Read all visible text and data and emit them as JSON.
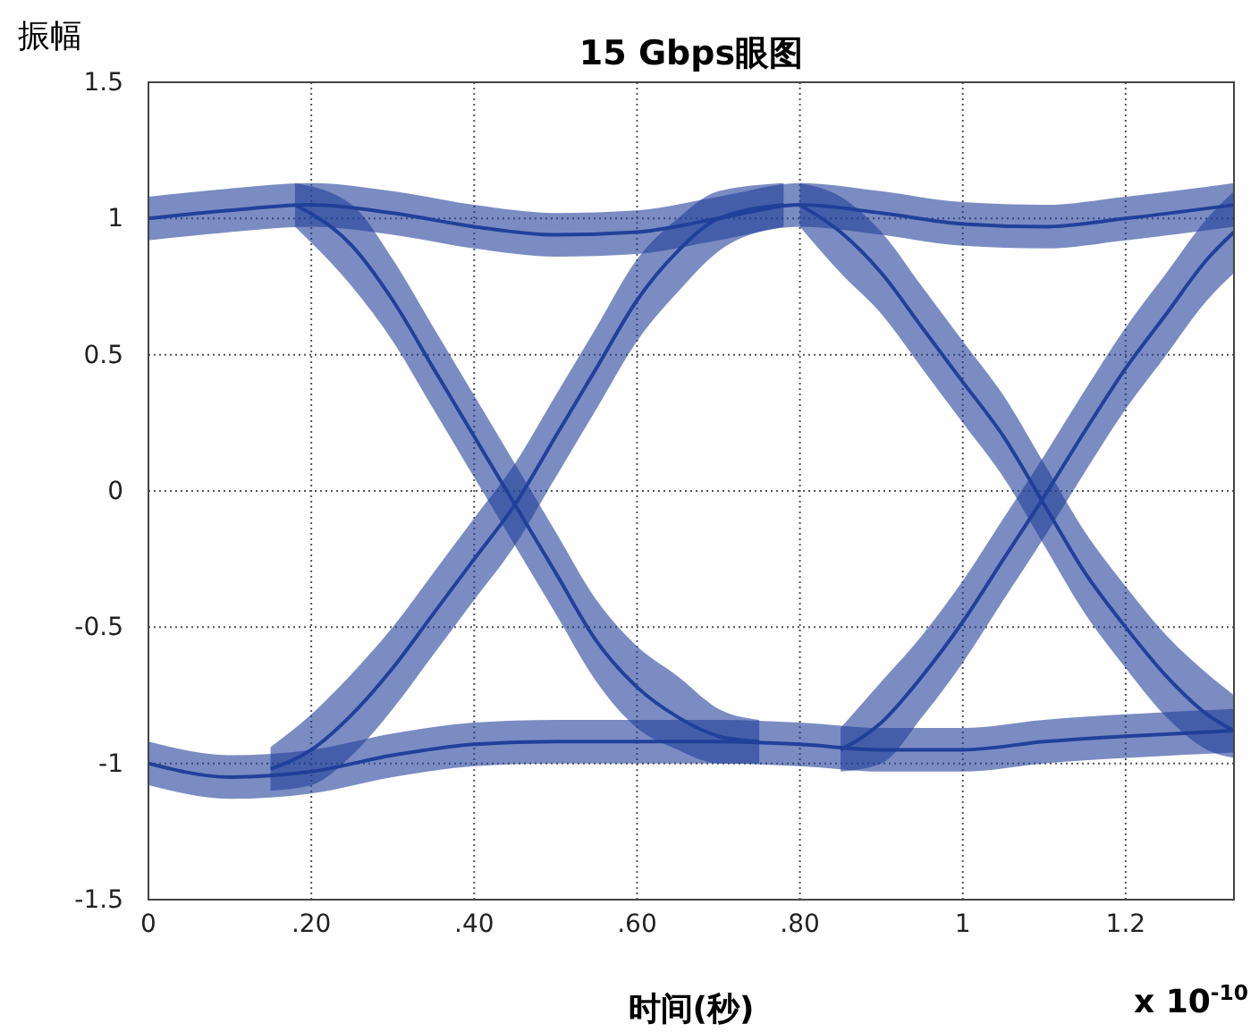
{
  "chart_data": {
    "type": "line",
    "title": "15 Gbps眼图",
    "xlabel": "时间(秒)",
    "ylabel": "振幅",
    "annotations": [
      "x 10$^{-10}$"
    ],
    "xlim": [
      0,
      1.333
    ],
    "ylim": [
      -1.5,
      1.5
    ],
    "xticks": [
      {
        "value": 0,
        "label": "0"
      },
      {
        "value": 0.2,
        "label": ".20"
      },
      {
        "value": 0.4,
        "label": ".40"
      },
      {
        "value": 0.6,
        "label": ".60"
      },
      {
        "value": 0.8,
        "label": ".80"
      },
      1,
      1.2
    ],
    "yticks": [
      -1.5,
      -1,
      -0.5,
      0,
      0.5,
      1,
      1.5
    ],
    "grid": true,
    "series": [
      {
        "color": "#21409a",
        "x": [
          0,
          0.1,
          0.2,
          0.3,
          0.4,
          0.5,
          0.6,
          0.7,
          0.8,
          0.9,
          1.0,
          1.1,
          1.2,
          1.333
        ],
        "values": [
          1.0,
          1.03,
          1.05,
          1.02,
          0.97,
          0.94,
          0.95,
          1.0,
          1.05,
          1.02,
          0.98,
          0.97,
          1.0,
          1.05
        ],
        "lower": [
          0.92,
          0.95,
          0.97,
          0.94,
          0.89,
          0.86,
          0.87,
          0.92,
          0.97,
          0.94,
          0.9,
          0.89,
          0.92,
          0.97
        ],
        "upper": [
          1.08,
          1.11,
          1.13,
          1.1,
          1.05,
          1.02,
          1.03,
          1.08,
          1.13,
          1.1,
          1.06,
          1.05,
          1.08,
          1.13
        ]
      },
      {
        "color": "#21409a",
        "x": [
          0,
          0.1,
          0.2,
          0.3,
          0.4,
          0.5,
          0.6,
          0.7,
          0.8,
          0.9,
          1.0,
          1.1,
          1.2,
          1.333
        ],
        "values": [
          -1.0,
          -1.05,
          -1.03,
          -0.97,
          -0.93,
          -0.92,
          -0.92,
          -0.92,
          -0.93,
          -0.95,
          -0.95,
          -0.92,
          -0.9,
          -0.88
        ],
        "lower": [
          -1.08,
          -1.13,
          -1.11,
          -1.05,
          -1.01,
          -1.0,
          -1.0,
          -1.0,
          -1.01,
          -1.03,
          -1.03,
          -1.0,
          -0.98,
          -0.96
        ],
        "upper": [
          -0.92,
          -0.97,
          -0.95,
          -0.89,
          -0.85,
          -0.84,
          -0.84,
          -0.84,
          -0.85,
          -0.87,
          -0.87,
          -0.84,
          -0.82,
          -0.8
        ]
      },
      {
        "color": "#21409a",
        "x": [
          0.18,
          0.25,
          0.3,
          0.35,
          0.4,
          0.45,
          0.5,
          0.55,
          0.6,
          0.65,
          0.7,
          0.75
        ],
        "values": [
          1.05,
          0.9,
          0.7,
          0.45,
          0.2,
          -0.05,
          -0.3,
          -0.55,
          -0.72,
          -0.83,
          -0.9,
          -0.92
        ],
        "lower": [
          0.97,
          0.75,
          0.55,
          0.3,
          0.05,
          -0.2,
          -0.45,
          -0.7,
          -0.87,
          -0.95,
          -1.0,
          -1.0
        ],
        "upper": [
          1.13,
          1.05,
          0.85,
          0.6,
          0.35,
          0.1,
          -0.15,
          -0.4,
          -0.57,
          -0.68,
          -0.8,
          -0.84
        ]
      },
      {
        "color": "#21409a",
        "x": [
          0.15,
          0.2,
          0.25,
          0.3,
          0.35,
          0.4,
          0.45,
          0.5,
          0.55,
          0.6,
          0.65,
          0.7,
          0.78
        ],
        "values": [
          -1.02,
          -0.95,
          -0.82,
          -0.65,
          -0.45,
          -0.25,
          -0.05,
          0.2,
          0.45,
          0.7,
          0.88,
          1.0,
          1.05
        ],
        "lower": [
          -1.1,
          -1.08,
          -0.97,
          -0.8,
          -0.6,
          -0.4,
          -0.2,
          0.05,
          0.3,
          0.55,
          0.73,
          0.88,
          0.97
        ],
        "upper": [
          -0.94,
          -0.82,
          -0.67,
          -0.5,
          -0.3,
          -0.1,
          0.1,
          0.35,
          0.6,
          0.85,
          1.0,
          1.1,
          1.13
        ]
      },
      {
        "color": "#21409a",
        "x": [
          0.8,
          0.85,
          0.9,
          0.95,
          1.0,
          1.05,
          1.1,
          1.15,
          1.2,
          1.25,
          1.3,
          1.333
        ],
        "values": [
          1.05,
          0.95,
          0.8,
          0.6,
          0.4,
          0.2,
          -0.05,
          -0.3,
          -0.5,
          -0.68,
          -0.82,
          -0.88
        ],
        "lower": [
          0.97,
          0.8,
          0.65,
          0.45,
          0.25,
          0.05,
          -0.2,
          -0.45,
          -0.65,
          -0.83,
          -0.95,
          -0.98
        ],
        "upper": [
          1.13,
          1.08,
          0.95,
          0.75,
          0.55,
          0.35,
          0.1,
          -0.15,
          -0.35,
          -0.53,
          -0.67,
          -0.75
        ]
      },
      {
        "color": "#21409a",
        "x": [
          0.85,
          0.9,
          0.95,
          1.0,
          1.05,
          1.1,
          1.15,
          1.2,
          1.25,
          1.3,
          1.333
        ],
        "values": [
          -0.95,
          -0.85,
          -0.68,
          -0.48,
          -0.25,
          -0.02,
          0.22,
          0.45,
          0.65,
          0.85,
          0.95
        ],
        "lower": [
          -1.03,
          -1.0,
          -0.83,
          -0.63,
          -0.4,
          -0.17,
          0.07,
          0.3,
          0.5,
          0.7,
          0.8
        ],
        "upper": [
          -0.87,
          -0.7,
          -0.53,
          -0.33,
          -0.1,
          0.13,
          0.37,
          0.6,
          0.8,
          1.0,
          1.1
        ]
      }
    ]
  }
}
